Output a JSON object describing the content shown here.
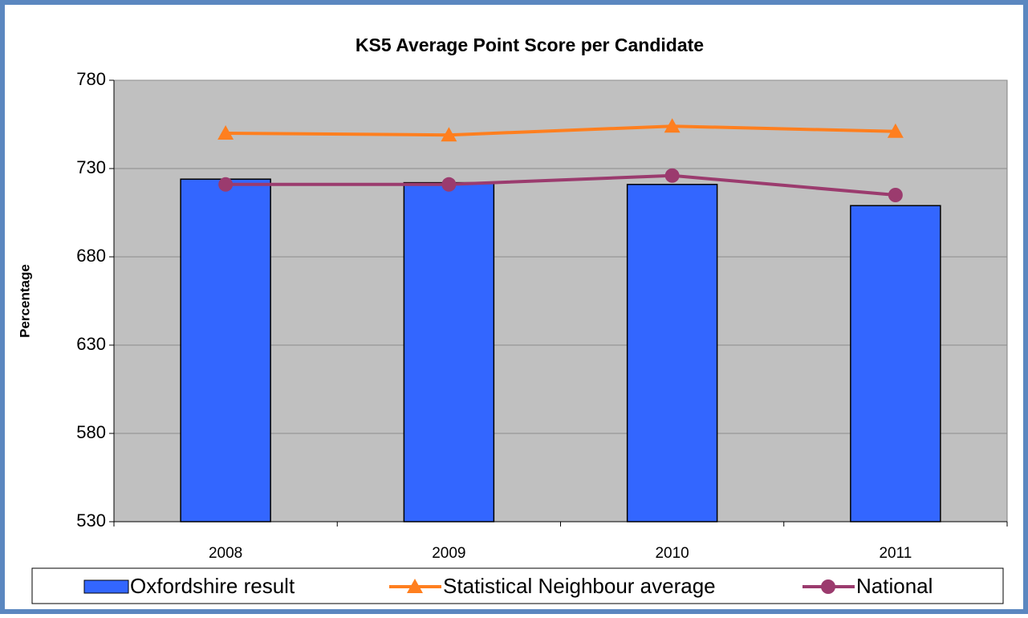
{
  "chart_data": {
    "type": "bar",
    "title": "KS5 Average Point Score per Candidate",
    "y_label": "Percentage",
    "categories": [
      "2008",
      "2009",
      "2010",
      "2011"
    ],
    "series": [
      {
        "name": "Oxfordshire result",
        "type": "bar",
        "color": "#3366ff",
        "values": [
          724,
          722,
          721,
          709
        ]
      },
      {
        "name": "Statistical Neighbour average",
        "type": "line",
        "marker": "triangle",
        "color": "#ff7f1f",
        "values": [
          750,
          749,
          754,
          751
        ]
      },
      {
        "name": "National",
        "type": "line",
        "marker": "circle",
        "color": "#9b3b6e",
        "values": [
          721,
          721,
          726,
          715
        ]
      }
    ],
    "ylim": [
      530,
      780
    ],
    "yticks": [
      530,
      580,
      630,
      680,
      730,
      780
    ],
    "grid": true,
    "legend": "bottom"
  }
}
